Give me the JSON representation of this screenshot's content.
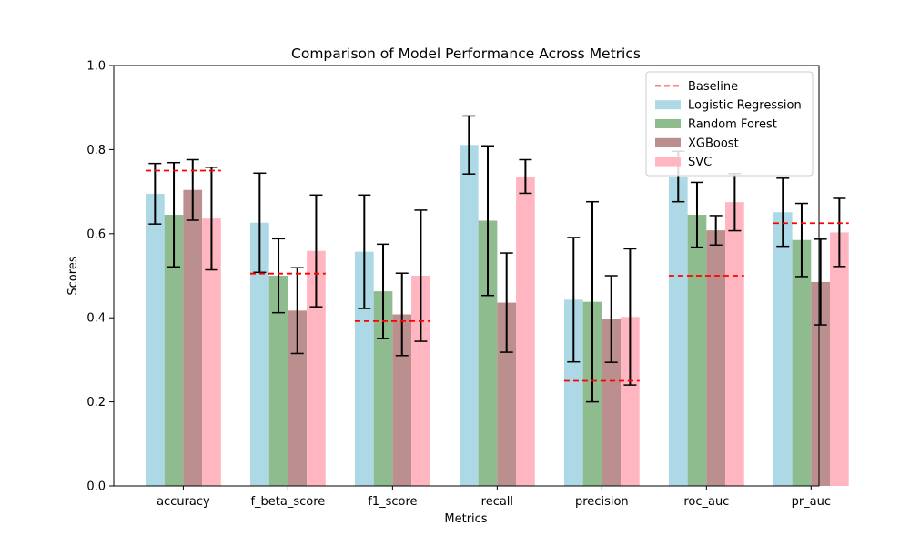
{
  "chart_data": {
    "type": "bar",
    "title": "Comparison of Model Performance Across Metrics",
    "xlabel": "Metrics",
    "ylabel": "Scores",
    "ylim": [
      0,
      1.0
    ],
    "yticks": [
      "0.0",
      "0.2",
      "0.4",
      "0.6",
      "0.8",
      "1.0"
    ],
    "categories": [
      "accuracy",
      "f_beta_score",
      "f1_score",
      "recall",
      "precision",
      "roc_auc",
      "pr_auc"
    ],
    "series": [
      {
        "name": "Logistic Regression",
        "color": "#add8e6",
        "values": [
          0.695,
          0.626,
          0.557,
          0.811,
          0.443,
          0.736,
          0.651
        ],
        "errors": [
          0.072,
          0.118,
          0.135,
          0.069,
          0.148,
          0.06,
          0.081
        ]
      },
      {
        "name": "Random Forest",
        "color": "#8fbc8f",
        "values": [
          0.645,
          0.5,
          0.463,
          0.631,
          0.438,
          0.645,
          0.585
        ],
        "errors": [
          0.124,
          0.088,
          0.112,
          0.178,
          0.238,
          0.077,
          0.087
        ]
      },
      {
        "name": "XGBoost",
        "color": "#bc8f8f",
        "values": [
          0.704,
          0.417,
          0.408,
          0.436,
          0.397,
          0.608,
          0.485
        ],
        "errors": [
          0.072,
          0.102,
          0.098,
          0.118,
          0.103,
          0.035,
          0.102
        ]
      },
      {
        "name": "SVC",
        "color": "#ffb6c1",
        "values": [
          0.636,
          0.559,
          0.5,
          0.736,
          0.402,
          0.675,
          0.603
        ],
        "errors": [
          0.122,
          0.133,
          0.156,
          0.04,
          0.162,
          0.068,
          0.081
        ]
      }
    ],
    "baseline": {
      "name": "Baseline",
      "color": "#ff0000",
      "values": [
        0.75,
        0.505,
        0.392,
        null,
        0.25,
        0.5,
        0.625
      ]
    },
    "legend_position": "top-right",
    "grid": false
  }
}
